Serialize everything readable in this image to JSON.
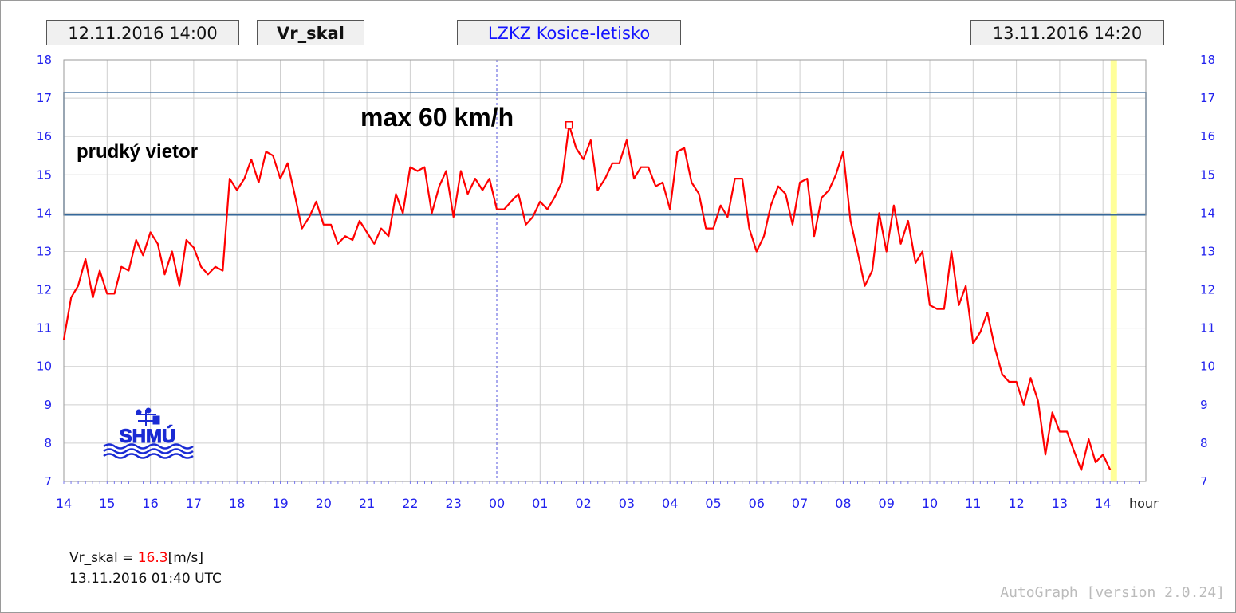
{
  "header": {
    "start_time": "12.11.2016 14:00",
    "variable": "Vr_skal",
    "station": "LZKZ Kosice-letisko",
    "end_time": "13.11.2016 14:20"
  },
  "colors": {
    "series": "#ff0000",
    "axis_labels": "#2222ee",
    "band": "#336699",
    "now_marker": "#ffff99"
  },
  "chart_data": {
    "type": "line",
    "ylim": [
      7,
      18
    ],
    "xlim_hours": [
      0,
      24.9
    ],
    "yticks": [
      "7",
      "8",
      "9",
      "10",
      "11",
      "12",
      "13",
      "14",
      "15",
      "16",
      "17",
      "18"
    ],
    "xticks": [
      "14",
      "15",
      "16",
      "17",
      "18",
      "19",
      "20",
      "21",
      "22",
      "23",
      "00",
      "01",
      "02",
      "03",
      "04",
      "05",
      "06",
      "07",
      "08",
      "09",
      "10",
      "11",
      "12",
      "13",
      "14"
    ],
    "xlabel": "hour",
    "grid": true,
    "band": [
      13.95,
      17.15
    ],
    "band_label": "prudký vietor",
    "max_label": "max 60 km/h",
    "max_point": {
      "x": 11.67,
      "y": 16.3
    },
    "now_marker_x": 24.25,
    "series": [
      {
        "values": [
          [
            0.0,
            10.7
          ],
          [
            0.17,
            11.8
          ],
          [
            0.33,
            12.1
          ],
          [
            0.5,
            12.8
          ],
          [
            0.67,
            11.8
          ],
          [
            0.83,
            12.5
          ],
          [
            1.0,
            11.9
          ],
          [
            1.17,
            11.9
          ],
          [
            1.33,
            12.6
          ],
          [
            1.5,
            12.5
          ],
          [
            1.67,
            13.3
          ],
          [
            1.83,
            12.9
          ],
          [
            2.0,
            13.5
          ],
          [
            2.17,
            13.2
          ],
          [
            2.33,
            12.4
          ],
          [
            2.5,
            13.0
          ],
          [
            2.67,
            12.1
          ],
          [
            2.83,
            13.3
          ],
          [
            3.0,
            13.1
          ],
          [
            3.17,
            12.6
          ],
          [
            3.33,
            12.4
          ],
          [
            3.5,
            12.6
          ],
          [
            3.67,
            12.5
          ],
          [
            3.83,
            14.9
          ],
          [
            4.0,
            14.6
          ],
          [
            4.17,
            14.9
          ],
          [
            4.33,
            15.4
          ],
          [
            4.5,
            14.8
          ],
          [
            4.67,
            15.6
          ],
          [
            4.83,
            15.5
          ],
          [
            5.0,
            14.9
          ],
          [
            5.17,
            15.3
          ],
          [
            5.33,
            14.5
          ],
          [
            5.5,
            13.6
          ],
          [
            5.67,
            13.9
          ],
          [
            5.83,
            14.3
          ],
          [
            6.0,
            13.7
          ],
          [
            6.17,
            13.7
          ],
          [
            6.33,
            13.2
          ],
          [
            6.5,
            13.4
          ],
          [
            6.67,
            13.3
          ],
          [
            6.83,
            13.8
          ],
          [
            7.0,
            13.5
          ],
          [
            7.17,
            13.2
          ],
          [
            7.33,
            13.6
          ],
          [
            7.5,
            13.4
          ],
          [
            7.67,
            14.5
          ],
          [
            7.83,
            14.0
          ],
          [
            8.0,
            15.2
          ],
          [
            8.17,
            15.1
          ],
          [
            8.33,
            15.2
          ],
          [
            8.5,
            14.0
          ],
          [
            8.67,
            14.7
          ],
          [
            8.83,
            15.1
          ],
          [
            9.0,
            13.9
          ],
          [
            9.17,
            15.1
          ],
          [
            9.33,
            14.5
          ],
          [
            9.5,
            14.9
          ],
          [
            9.67,
            14.6
          ],
          [
            9.83,
            14.9
          ],
          [
            10.0,
            14.1
          ],
          [
            10.17,
            14.1
          ],
          [
            10.33,
            14.3
          ],
          [
            10.5,
            14.5
          ],
          [
            10.67,
            13.7
          ],
          [
            10.83,
            13.9
          ],
          [
            11.0,
            14.3
          ],
          [
            11.17,
            14.1
          ],
          [
            11.33,
            14.4
          ],
          [
            11.5,
            14.8
          ],
          [
            11.67,
            16.3
          ],
          [
            11.83,
            15.7
          ],
          [
            12.0,
            15.4
          ],
          [
            12.17,
            15.9
          ],
          [
            12.33,
            14.6
          ],
          [
            12.5,
            14.9
          ],
          [
            12.67,
            15.3
          ],
          [
            12.83,
            15.3
          ],
          [
            13.0,
            15.9
          ],
          [
            13.17,
            14.9
          ],
          [
            13.33,
            15.2
          ],
          [
            13.5,
            15.2
          ],
          [
            13.67,
            14.7
          ],
          [
            13.83,
            14.8
          ],
          [
            14.0,
            14.1
          ],
          [
            14.17,
            15.6
          ],
          [
            14.33,
            15.7
          ],
          [
            14.5,
            14.8
          ],
          [
            14.67,
            14.5
          ],
          [
            14.83,
            13.6
          ],
          [
            15.0,
            13.6
          ],
          [
            15.17,
            14.2
          ],
          [
            15.33,
            13.9
          ],
          [
            15.5,
            14.9
          ],
          [
            15.67,
            14.9
          ],
          [
            15.83,
            13.6
          ],
          [
            16.0,
            13.0
          ],
          [
            16.17,
            13.4
          ],
          [
            16.33,
            14.2
          ],
          [
            16.5,
            14.7
          ],
          [
            16.67,
            14.5
          ],
          [
            16.83,
            13.7
          ],
          [
            17.0,
            14.8
          ],
          [
            17.17,
            14.9
          ],
          [
            17.33,
            13.4
          ],
          [
            17.5,
            14.4
          ],
          [
            17.67,
            14.6
          ],
          [
            17.83,
            15.0
          ],
          [
            18.0,
            15.6
          ],
          [
            18.17,
            13.8
          ],
          [
            18.33,
            13.0
          ],
          [
            18.5,
            12.1
          ],
          [
            18.67,
            12.5
          ],
          [
            18.83,
            14.0
          ],
          [
            19.0,
            13.0
          ],
          [
            19.17,
            14.2
          ],
          [
            19.33,
            13.2
          ],
          [
            19.5,
            13.8
          ],
          [
            19.67,
            12.7
          ],
          [
            19.83,
            13.0
          ],
          [
            20.0,
            11.6
          ],
          [
            20.17,
            11.5
          ],
          [
            20.33,
            11.5
          ],
          [
            20.5,
            13.0
          ],
          [
            20.67,
            11.6
          ],
          [
            20.83,
            12.1
          ],
          [
            21.0,
            10.6
          ],
          [
            21.17,
            10.9
          ],
          [
            21.33,
            11.4
          ],
          [
            21.5,
            10.5
          ],
          [
            21.67,
            9.8
          ],
          [
            21.83,
            9.6
          ],
          [
            22.0,
            9.6
          ],
          [
            22.17,
            9.0
          ],
          [
            22.33,
            9.7
          ],
          [
            22.5,
            9.1
          ],
          [
            22.67,
            7.7
          ],
          [
            22.83,
            8.8
          ],
          [
            23.0,
            8.3
          ],
          [
            23.17,
            8.3
          ],
          [
            23.33,
            7.8
          ],
          [
            23.5,
            7.3
          ],
          [
            23.67,
            8.1
          ],
          [
            23.83,
            7.5
          ],
          [
            24.0,
            7.7
          ],
          [
            24.17,
            7.3
          ]
        ]
      }
    ]
  },
  "readout": {
    "label": "Vr_skal = ",
    "value": "16.3",
    "unit": "[m/s]",
    "time": "13.11.2016 01:40 UTC"
  },
  "logo_text": "SHMÚ",
  "footer": "AutoGraph [version 2.0.24]"
}
